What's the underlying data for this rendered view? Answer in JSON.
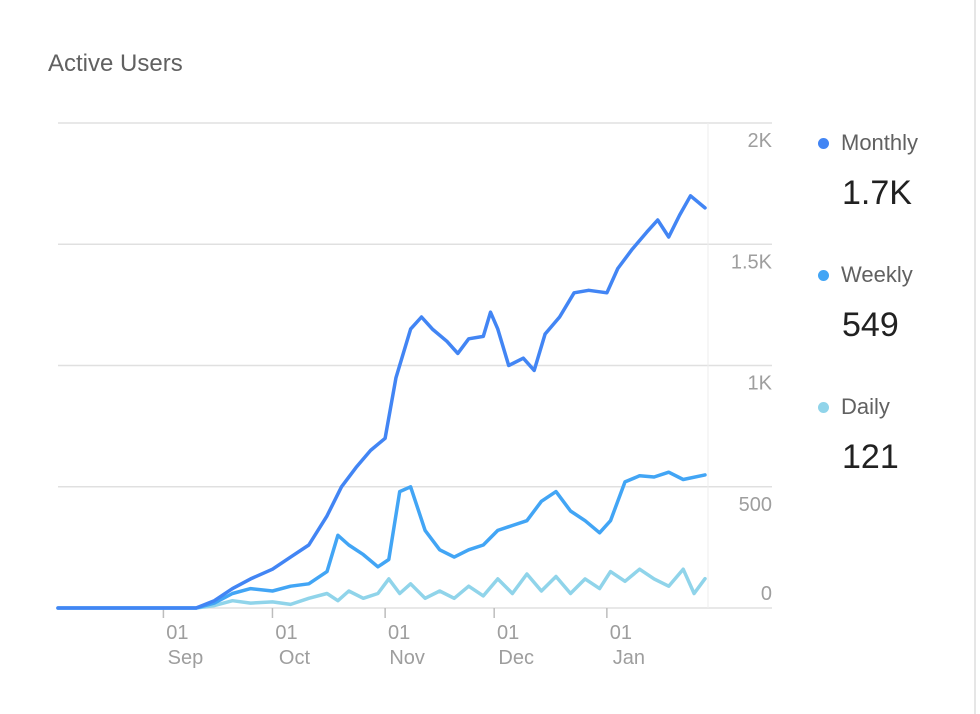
{
  "card": {
    "title": "Active Users"
  },
  "legend": [
    {
      "label": "Monthly",
      "value": "1.7K",
      "color": "#4285f4"
    },
    {
      "label": "Weekly",
      "value": "549",
      "color": "#42a5f5"
    },
    {
      "label": "Daily",
      "value": "121",
      "color": "#90d4ea"
    }
  ],
  "chart_data": {
    "type": "line",
    "title": "Active Users",
    "xlabel": "",
    "ylabel": "",
    "ylim": [
      0,
      2000
    ],
    "y_ticks": [
      "0",
      "500",
      "1K",
      "1.5K",
      "2K"
    ],
    "y_tick_values": [
      0,
      500,
      1000,
      1500,
      2000
    ],
    "x_ticks": [
      {
        "day": "01",
        "month": "Sep",
        "date": "2018-09-01"
      },
      {
        "day": "01",
        "month": "Oct",
        "date": "2018-10-01"
      },
      {
        "day": "01",
        "month": "Nov",
        "date": "2018-11-01"
      },
      {
        "day": "01",
        "month": "Dec",
        "date": "2018-12-01"
      },
      {
        "day": "01",
        "month": "Jan",
        "date": "2019-01-01"
      }
    ],
    "x_range": [
      "2018-08-03",
      "2019-01-28"
    ],
    "grid": true,
    "legend_position": "right",
    "series": [
      {
        "name": "Monthly",
        "color": "#4285f4",
        "points": [
          [
            "2018-08-03",
            0
          ],
          [
            "2018-09-10",
            0
          ],
          [
            "2018-09-15",
            30
          ],
          [
            "2018-09-20",
            80
          ],
          [
            "2018-09-25",
            120
          ],
          [
            "2018-10-01",
            160
          ],
          [
            "2018-10-06",
            210
          ],
          [
            "2018-10-11",
            260
          ],
          [
            "2018-10-16",
            380
          ],
          [
            "2018-10-20",
            500
          ],
          [
            "2018-10-24",
            580
          ],
          [
            "2018-10-28",
            650
          ],
          [
            "2018-11-01",
            700
          ],
          [
            "2018-11-04",
            950
          ],
          [
            "2018-11-08",
            1150
          ],
          [
            "2018-11-11",
            1200
          ],
          [
            "2018-11-14",
            1150
          ],
          [
            "2018-11-18",
            1100
          ],
          [
            "2018-11-21",
            1050
          ],
          [
            "2018-11-24",
            1110
          ],
          [
            "2018-11-28",
            1120
          ],
          [
            "2018-11-30",
            1220
          ],
          [
            "2018-12-02",
            1150
          ],
          [
            "2018-12-05",
            1000
          ],
          [
            "2018-12-09",
            1030
          ],
          [
            "2018-12-12",
            980
          ],
          [
            "2018-12-15",
            1130
          ],
          [
            "2018-12-19",
            1200
          ],
          [
            "2018-12-23",
            1300
          ],
          [
            "2018-12-27",
            1310
          ],
          [
            "2019-01-01",
            1300
          ],
          [
            "2019-01-04",
            1400
          ],
          [
            "2019-01-08",
            1480
          ],
          [
            "2019-01-12",
            1550
          ],
          [
            "2019-01-15",
            1600
          ],
          [
            "2019-01-18",
            1530
          ],
          [
            "2019-01-21",
            1620
          ],
          [
            "2019-01-24",
            1700
          ],
          [
            "2019-01-28",
            1650
          ]
        ]
      },
      {
        "name": "Weekly",
        "color": "#42a5f5",
        "points": [
          [
            "2018-08-03",
            0
          ],
          [
            "2018-09-10",
            0
          ],
          [
            "2018-09-15",
            20
          ],
          [
            "2018-09-20",
            60
          ],
          [
            "2018-09-25",
            80
          ],
          [
            "2018-10-01",
            70
          ],
          [
            "2018-10-06",
            90
          ],
          [
            "2018-10-11",
            100
          ],
          [
            "2018-10-16",
            150
          ],
          [
            "2018-10-19",
            300
          ],
          [
            "2018-10-22",
            260
          ],
          [
            "2018-10-26",
            220
          ],
          [
            "2018-10-30",
            170
          ],
          [
            "2018-11-02",
            200
          ],
          [
            "2018-11-05",
            480
          ],
          [
            "2018-11-08",
            500
          ],
          [
            "2018-11-12",
            320
          ],
          [
            "2018-11-16",
            240
          ],
          [
            "2018-11-20",
            210
          ],
          [
            "2018-11-24",
            240
          ],
          [
            "2018-11-28",
            260
          ],
          [
            "2018-12-02",
            320
          ],
          [
            "2018-12-06",
            340
          ],
          [
            "2018-12-10",
            360
          ],
          [
            "2018-12-14",
            440
          ],
          [
            "2018-12-18",
            480
          ],
          [
            "2018-12-22",
            400
          ],
          [
            "2018-12-26",
            360
          ],
          [
            "2018-12-30",
            310
          ],
          [
            "2019-01-02",
            360
          ],
          [
            "2019-01-06",
            520
          ],
          [
            "2019-01-10",
            545
          ],
          [
            "2019-01-14",
            540
          ],
          [
            "2019-01-18",
            560
          ],
          [
            "2019-01-22",
            530
          ],
          [
            "2019-01-28",
            549
          ]
        ]
      },
      {
        "name": "Daily",
        "color": "#90d4ea",
        "points": [
          [
            "2018-08-03",
            0
          ],
          [
            "2018-09-10",
            0
          ],
          [
            "2018-09-15",
            10
          ],
          [
            "2018-09-20",
            30
          ],
          [
            "2018-09-25",
            20
          ],
          [
            "2018-10-01",
            25
          ],
          [
            "2018-10-06",
            15
          ],
          [
            "2018-10-11",
            40
          ],
          [
            "2018-10-16",
            60
          ],
          [
            "2018-10-19",
            30
          ],
          [
            "2018-10-22",
            70
          ],
          [
            "2018-10-26",
            40
          ],
          [
            "2018-10-30",
            60
          ],
          [
            "2018-11-02",
            120
          ],
          [
            "2018-11-05",
            60
          ],
          [
            "2018-11-08",
            100
          ],
          [
            "2018-11-12",
            40
          ],
          [
            "2018-11-16",
            70
          ],
          [
            "2018-11-20",
            40
          ],
          [
            "2018-11-24",
            90
          ],
          [
            "2018-11-28",
            50
          ],
          [
            "2018-12-02",
            120
          ],
          [
            "2018-12-06",
            60
          ],
          [
            "2018-12-10",
            140
          ],
          [
            "2018-12-14",
            70
          ],
          [
            "2018-12-18",
            130
          ],
          [
            "2018-12-22",
            60
          ],
          [
            "2018-12-26",
            120
          ],
          [
            "2018-12-30",
            80
          ],
          [
            "2019-01-02",
            150
          ],
          [
            "2019-01-06",
            110
          ],
          [
            "2019-01-10",
            160
          ],
          [
            "2019-01-14",
            120
          ],
          [
            "2019-01-18",
            90
          ],
          [
            "2019-01-22",
            160
          ],
          [
            "2019-01-25",
            60
          ],
          [
            "2019-01-28",
            121
          ]
        ]
      }
    ]
  }
}
